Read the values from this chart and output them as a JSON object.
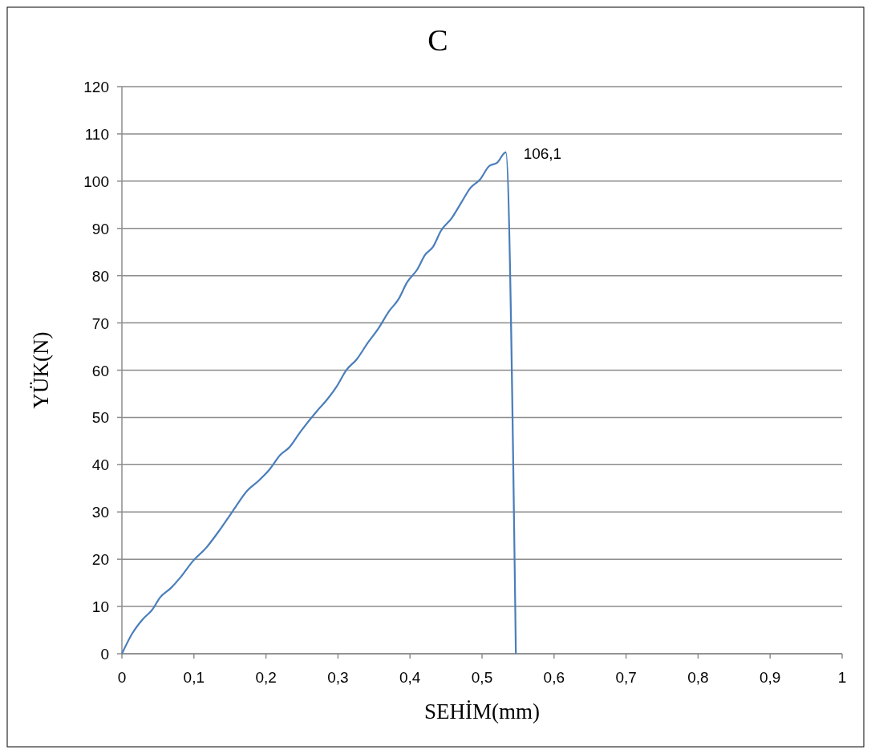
{
  "chart_data": {
    "type": "line",
    "title": "C",
    "xlabel": "SEHİM(mm)",
    "ylabel": "YÜK(N)",
    "x": [
      0,
      0.014,
      0.029,
      0.042,
      0.053,
      0.068,
      0.081,
      0.098,
      0.118,
      0.134,
      0.154,
      0.174,
      0.189,
      0.205,
      0.22,
      0.232,
      0.248,
      0.271,
      0.285,
      0.298,
      0.312,
      0.326,
      0.341,
      0.356,
      0.371,
      0.384,
      0.396,
      0.41,
      0.421,
      0.432,
      0.443,
      0.458,
      0.471,
      0.484,
      0.497,
      0.51,
      0.521,
      0.533,
      0.547
    ],
    "series": [
      {
        "color": "#4a7ebb",
        "values": [
          0,
          4.2,
          7.3,
          9.3,
          11.9,
          13.9,
          16.1,
          19.5,
          22.6,
          25.8,
          30.2,
          34.5,
          36.5,
          39,
          42.1,
          43.6,
          47,
          51.4,
          53.8,
          56.5,
          60.1,
          62.3,
          65.7,
          68.8,
          72.5,
          75,
          78.6,
          81.3,
          84.4,
          86.1,
          89.5,
          92.2,
          95.4,
          98.6,
          100.3,
          103.2,
          103.9,
          106.1,
          0
        ]
      }
    ],
    "annotations": [
      {
        "text": "106,1",
        "x": 0.533,
        "y": 106.1
      }
    ],
    "xlim": [
      0,
      1
    ],
    "xticks": [
      0,
      {
        "value": 0.1,
        "label": "0,1"
      },
      {
        "value": 0.2,
        "label": "0,2"
      },
      {
        "value": 0.3,
        "label": "0,3"
      },
      {
        "value": 0.4,
        "label": "0,4"
      },
      {
        "value": 0.5,
        "label": "0,5"
      },
      {
        "value": 0.6,
        "label": "0,6"
      },
      {
        "value": 0.7,
        "label": "0,7"
      },
      {
        "value": 0.8,
        "label": "0,8"
      },
      {
        "value": 0.9,
        "label": "0,9"
      },
      1
    ],
    "ylim": [
      0,
      120
    ],
    "yticks": [
      0,
      10,
      20,
      30,
      40,
      50,
      60,
      70,
      80,
      90,
      100,
      110,
      120
    ],
    "grid": "y",
    "marker": "none",
    "line_style": "solid"
  }
}
